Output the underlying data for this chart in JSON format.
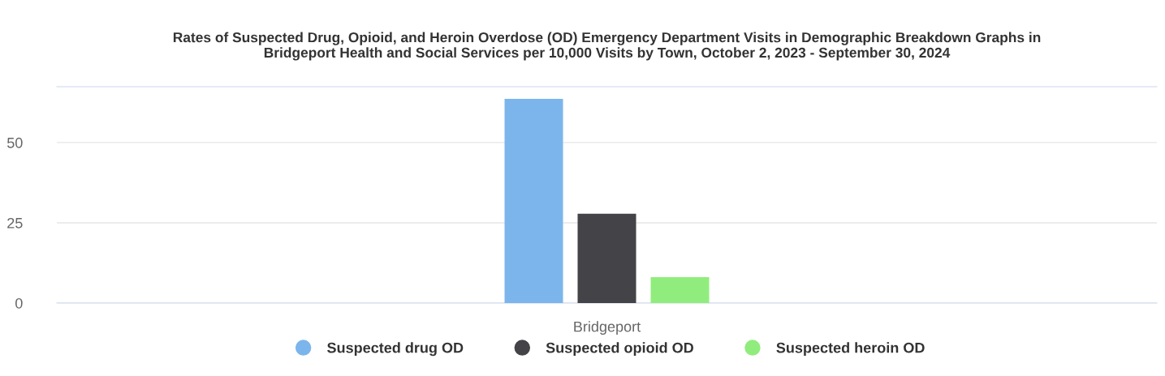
{
  "chart_data": {
    "type": "bar",
    "title": "Rates of Suspected Drug, Opioid, and Heroin Overdose (OD) Emergency Department Visits in Demographic Breakdown Graphs in\nBridgeport Health and Social Services per 10,000 Visits by Town, October 2, 2023 - September 30, 2024",
    "categories": [
      "Bridgeport"
    ],
    "series": [
      {
        "name": "Suspected drug OD",
        "color": "#7cb5ec",
        "values": [
          63.6
        ]
      },
      {
        "name": "Suspected opioid OD",
        "color": "#434348",
        "values": [
          27.8
        ]
      },
      {
        "name": "Suspected heroin OD",
        "color": "#90ed7d",
        "values": [
          8.1
        ]
      }
    ],
    "ylim": [
      0,
      67.4
    ],
    "yticks": [
      0,
      25,
      50
    ],
    "grid": "y",
    "legend": "bottom"
  }
}
